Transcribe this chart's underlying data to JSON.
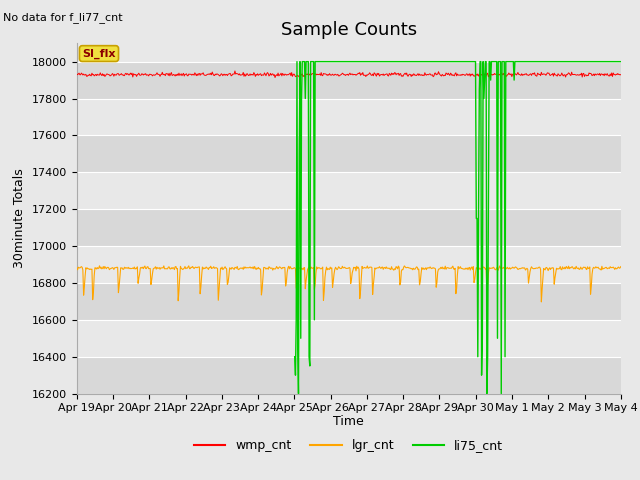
{
  "title": "Sample Counts",
  "top_left_text": "No data for f_li77_cnt",
  "annotation_text": "SI_flx",
  "ylabel": "30minute Totals",
  "xlabel": "Time",
  "ylim": [
    16200,
    18100
  ],
  "bg_color": "#e8e8e8",
  "plot_bg_color": "#e8e8e8",
  "wmp_base": 17930,
  "lgr_base": 16880,
  "li75_base": 18000,
  "x_tick_labels": [
    "Apr 19",
    "Apr 20",
    "Apr 21",
    "Apr 22",
    "Apr 23",
    "Apr 24",
    "Apr 25",
    "Apr 26",
    "Apr 27",
    "Apr 28",
    "Apr 29",
    "Apr 30",
    "May 1",
    "May 2",
    "May 3",
    "May 4"
  ],
  "legend_labels": [
    "wmp_cnt",
    "lgr_cnt",
    "li75_cnt"
  ],
  "legend_colors": [
    "#ff0000",
    "#ffa500",
    "#00cc00"
  ],
  "title_fontsize": 13,
  "label_fontsize": 9,
  "tick_fontsize": 8,
  "n_days": 15,
  "n_per_day": 48
}
